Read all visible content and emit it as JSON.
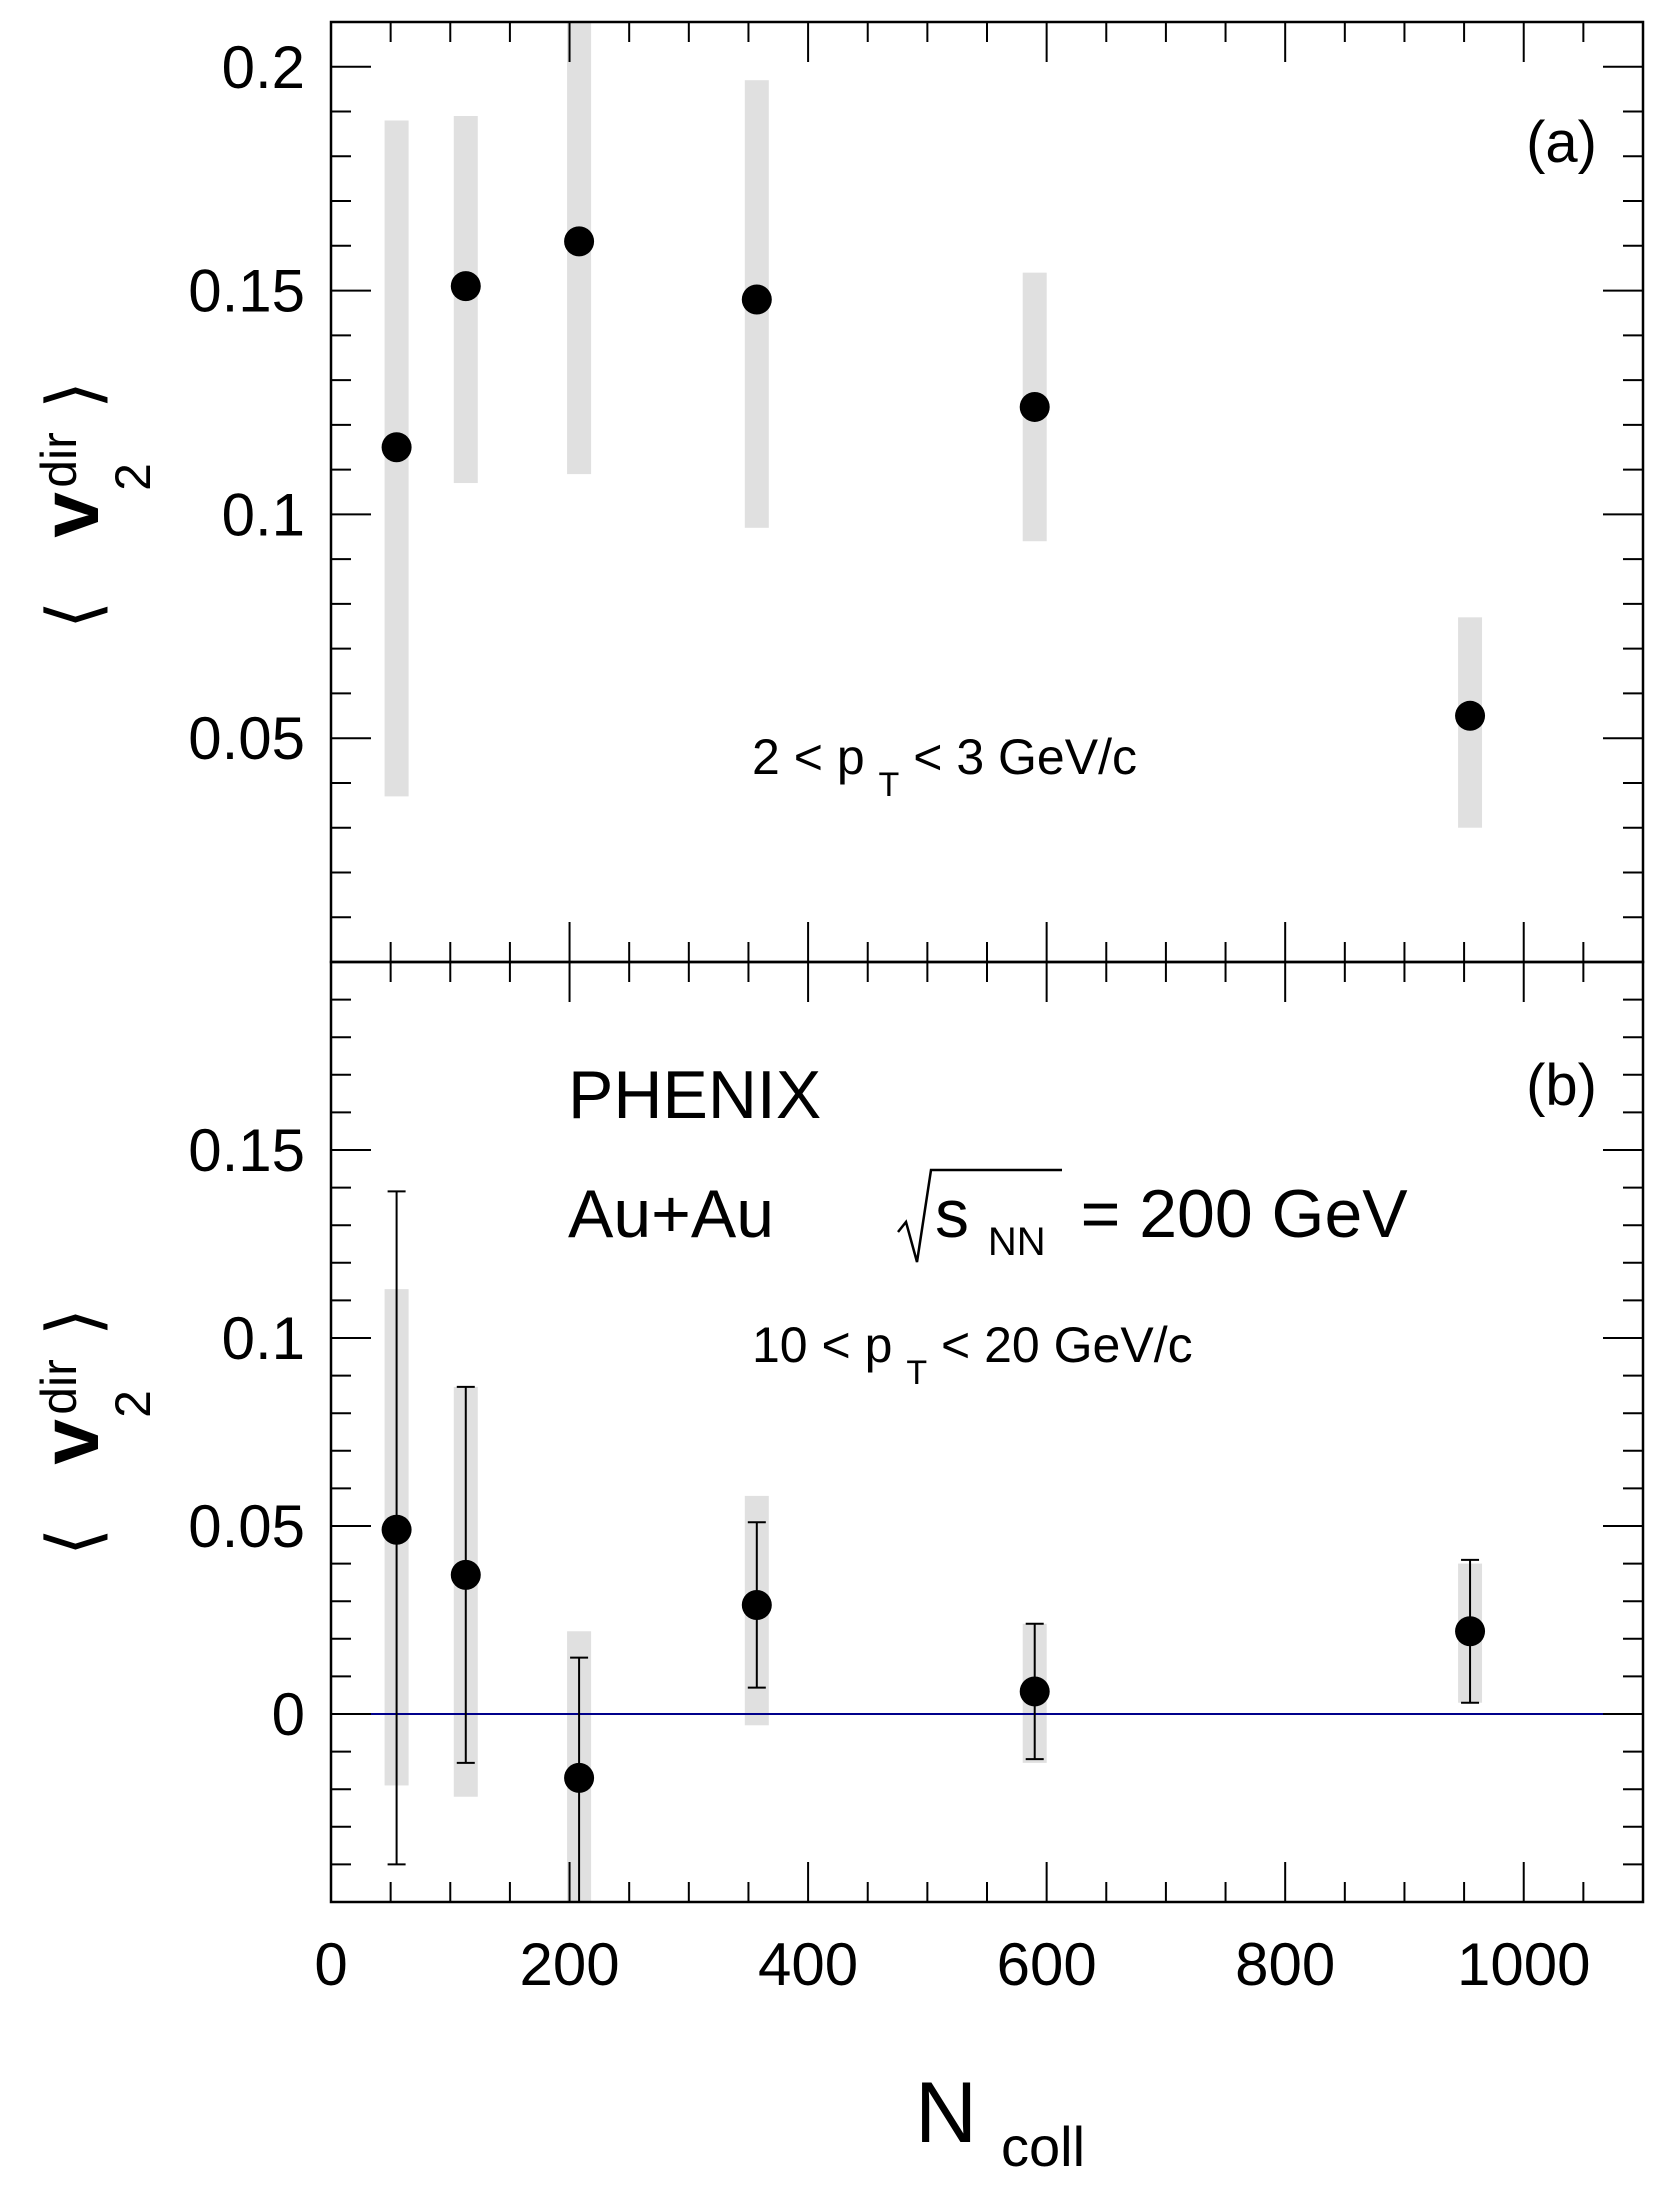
{
  "colors": {
    "frame": "#000000",
    "marker": "#000000",
    "sys_band": "#e0e0e0",
    "zero_line": "#00008b"
  },
  "chart_data": [
    {
      "type": "scatter",
      "panel_label": "(a)",
      "ylabel": {
        "main": "v",
        "sub": "2",
        "sup": "dir"
      },
      "annotation": {
        "lo": "2",
        "var": "p",
        "sub": "T",
        "hi": "3",
        "unit": "GeV/c"
      },
      "xlim": [
        0,
        1100
      ],
      "ylim": [
        0,
        0.21
      ],
      "yticks": [
        0.05,
        0.1,
        0.15,
        0.2
      ],
      "ytick_labels": [
        "0.05",
        "0.1",
        "0.15",
        "0.2"
      ],
      "points": [
        {
          "x": 55,
          "y": 0.115,
          "sys_lo": 0.037,
          "sys_hi": 0.188
        },
        {
          "x": 113,
          "y": 0.151,
          "sys_lo": 0.107,
          "sys_hi": 0.189
        },
        {
          "x": 208,
          "y": 0.161,
          "sys_lo": 0.109,
          "sys_hi": 0.21
        },
        {
          "x": 357,
          "y": 0.148,
          "sys_lo": 0.097,
          "sys_hi": 0.197
        },
        {
          "x": 590,
          "y": 0.124,
          "sys_lo": 0.094,
          "sys_hi": 0.154
        },
        {
          "x": 955,
          "y": 0.055,
          "sys_lo": 0.03,
          "sys_hi": 0.077
        }
      ]
    },
    {
      "type": "scatter",
      "panel_label": "(b)",
      "ylabel": {
        "main": "v",
        "sub": "2",
        "sup": "dir"
      },
      "experiment": "PHENIX",
      "system": "Au+Au",
      "energy": {
        "var": "s",
        "sub": "NN",
        "value": "= 200 GeV"
      },
      "annotation": {
        "lo": "10",
        "var": "p",
        "sub": "T",
        "hi": "20",
        "unit": "GeV/c"
      },
      "xlabel": {
        "main": "N",
        "sub": "coll"
      },
      "xlim": [
        0,
        1100
      ],
      "ylim": [
        -0.05,
        0.2
      ],
      "xticks": [
        0,
        200,
        400,
        600,
        800,
        1000
      ],
      "xtick_labels": [
        "0",
        "200",
        "400",
        "600",
        "800",
        "1000"
      ],
      "yticks": [
        0,
        0.05,
        0.1,
        0.15
      ],
      "ytick_labels": [
        "0",
        "0.05",
        "0.1",
        "0.15"
      ],
      "reference_line_y": 0,
      "points": [
        {
          "x": 55,
          "y": 0.049,
          "stat_lo": -0.04,
          "stat_hi": 0.139,
          "sys_lo": -0.019,
          "sys_hi": 0.113
        },
        {
          "x": 113,
          "y": 0.037,
          "stat_lo": -0.013,
          "stat_hi": 0.087,
          "sys_lo": -0.022,
          "sys_hi": 0.087
        },
        {
          "x": 208,
          "y": -0.017,
          "stat_lo": -0.05,
          "stat_hi": 0.015,
          "sys_lo": -0.05,
          "sys_hi": 0.022
        },
        {
          "x": 357,
          "y": 0.029,
          "stat_lo": 0.007,
          "stat_hi": 0.051,
          "sys_lo": -0.003,
          "sys_hi": 0.058
        },
        {
          "x": 590,
          "y": 0.006,
          "stat_lo": -0.012,
          "stat_hi": 0.024,
          "sys_lo": -0.013,
          "sys_hi": 0.024
        },
        {
          "x": 955,
          "y": 0.022,
          "stat_lo": 0.003,
          "stat_hi": 0.041,
          "sys_lo": 0.003,
          "sys_hi": 0.04
        }
      ]
    }
  ]
}
